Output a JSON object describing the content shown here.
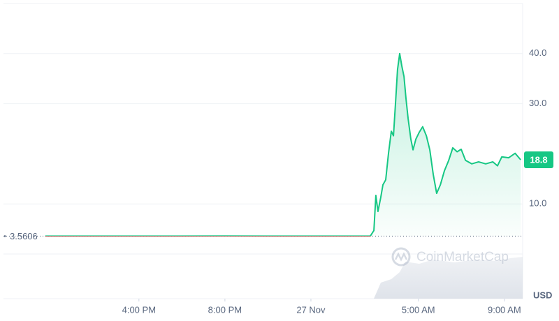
{
  "chart_data": {
    "type": "line",
    "x": [
      11.64,
      20,
      26.76,
      26.93,
      27.02,
      27.12,
      27.25,
      27.35,
      27.48,
      27.61,
      27.74,
      27.84,
      27.93,
      28.03,
      28.13,
      28.23,
      28.33,
      28.42,
      28.52,
      28.65,
      28.75,
      28.88,
      29.04,
      29.2,
      29.37,
      29.53,
      29.69,
      29.85,
      30.02,
      30.21,
      30.41,
      30.6,
      30.8,
      30.99,
      31.19,
      31.48,
      31.8,
      32.13,
      32.46,
      32.68,
      32.88,
      33.2,
      33.5,
      33.76
    ],
    "values": [
      3.56,
      3.58,
      3.56,
      4.7,
      11.7,
      8.5,
      11.3,
      13.8,
      14.8,
      20.1,
      24.5,
      23.6,
      29.8,
      36.8,
      40.0,
      37.5,
      35.4,
      31.2,
      27.1,
      22.9,
      20.8,
      22.9,
      24.3,
      25.4,
      23.6,
      20.8,
      15.9,
      12.1,
      13.8,
      16.6,
      18.7,
      21.2,
      20.4,
      20.9,
      18.7,
      18.0,
      18.4,
      18.0,
      18.4,
      17.6,
      19.4,
      19.2,
      20.1,
      18.8
    ],
    "color": "#16c784",
    "below_color": "#ea3943",
    "reference_price": 3.5606,
    "current_price_label": "18.8",
    "currency": "USD",
    "watermark": "CoinMarketCap",
    "xlim": [
      9.7,
      33.85
    ],
    "xticks": [
      {
        "value": 16,
        "label": "4:00 PM"
      },
      {
        "value": 20,
        "label": "8:00 PM"
      },
      {
        "value": 24,
        "label": "27 Nov"
      },
      {
        "value": 29,
        "label": "5:00 AM"
      },
      {
        "value": 33,
        "label": "9:00 AM"
      }
    ],
    "ylim": [
      0,
      50
    ],
    "yticks": [
      {
        "value": 10,
        "label": "10.0"
      },
      {
        "value": 30,
        "label": "30.0"
      },
      {
        "value": 40,
        "label": "40.0"
      }
    ],
    "grid": true
  }
}
